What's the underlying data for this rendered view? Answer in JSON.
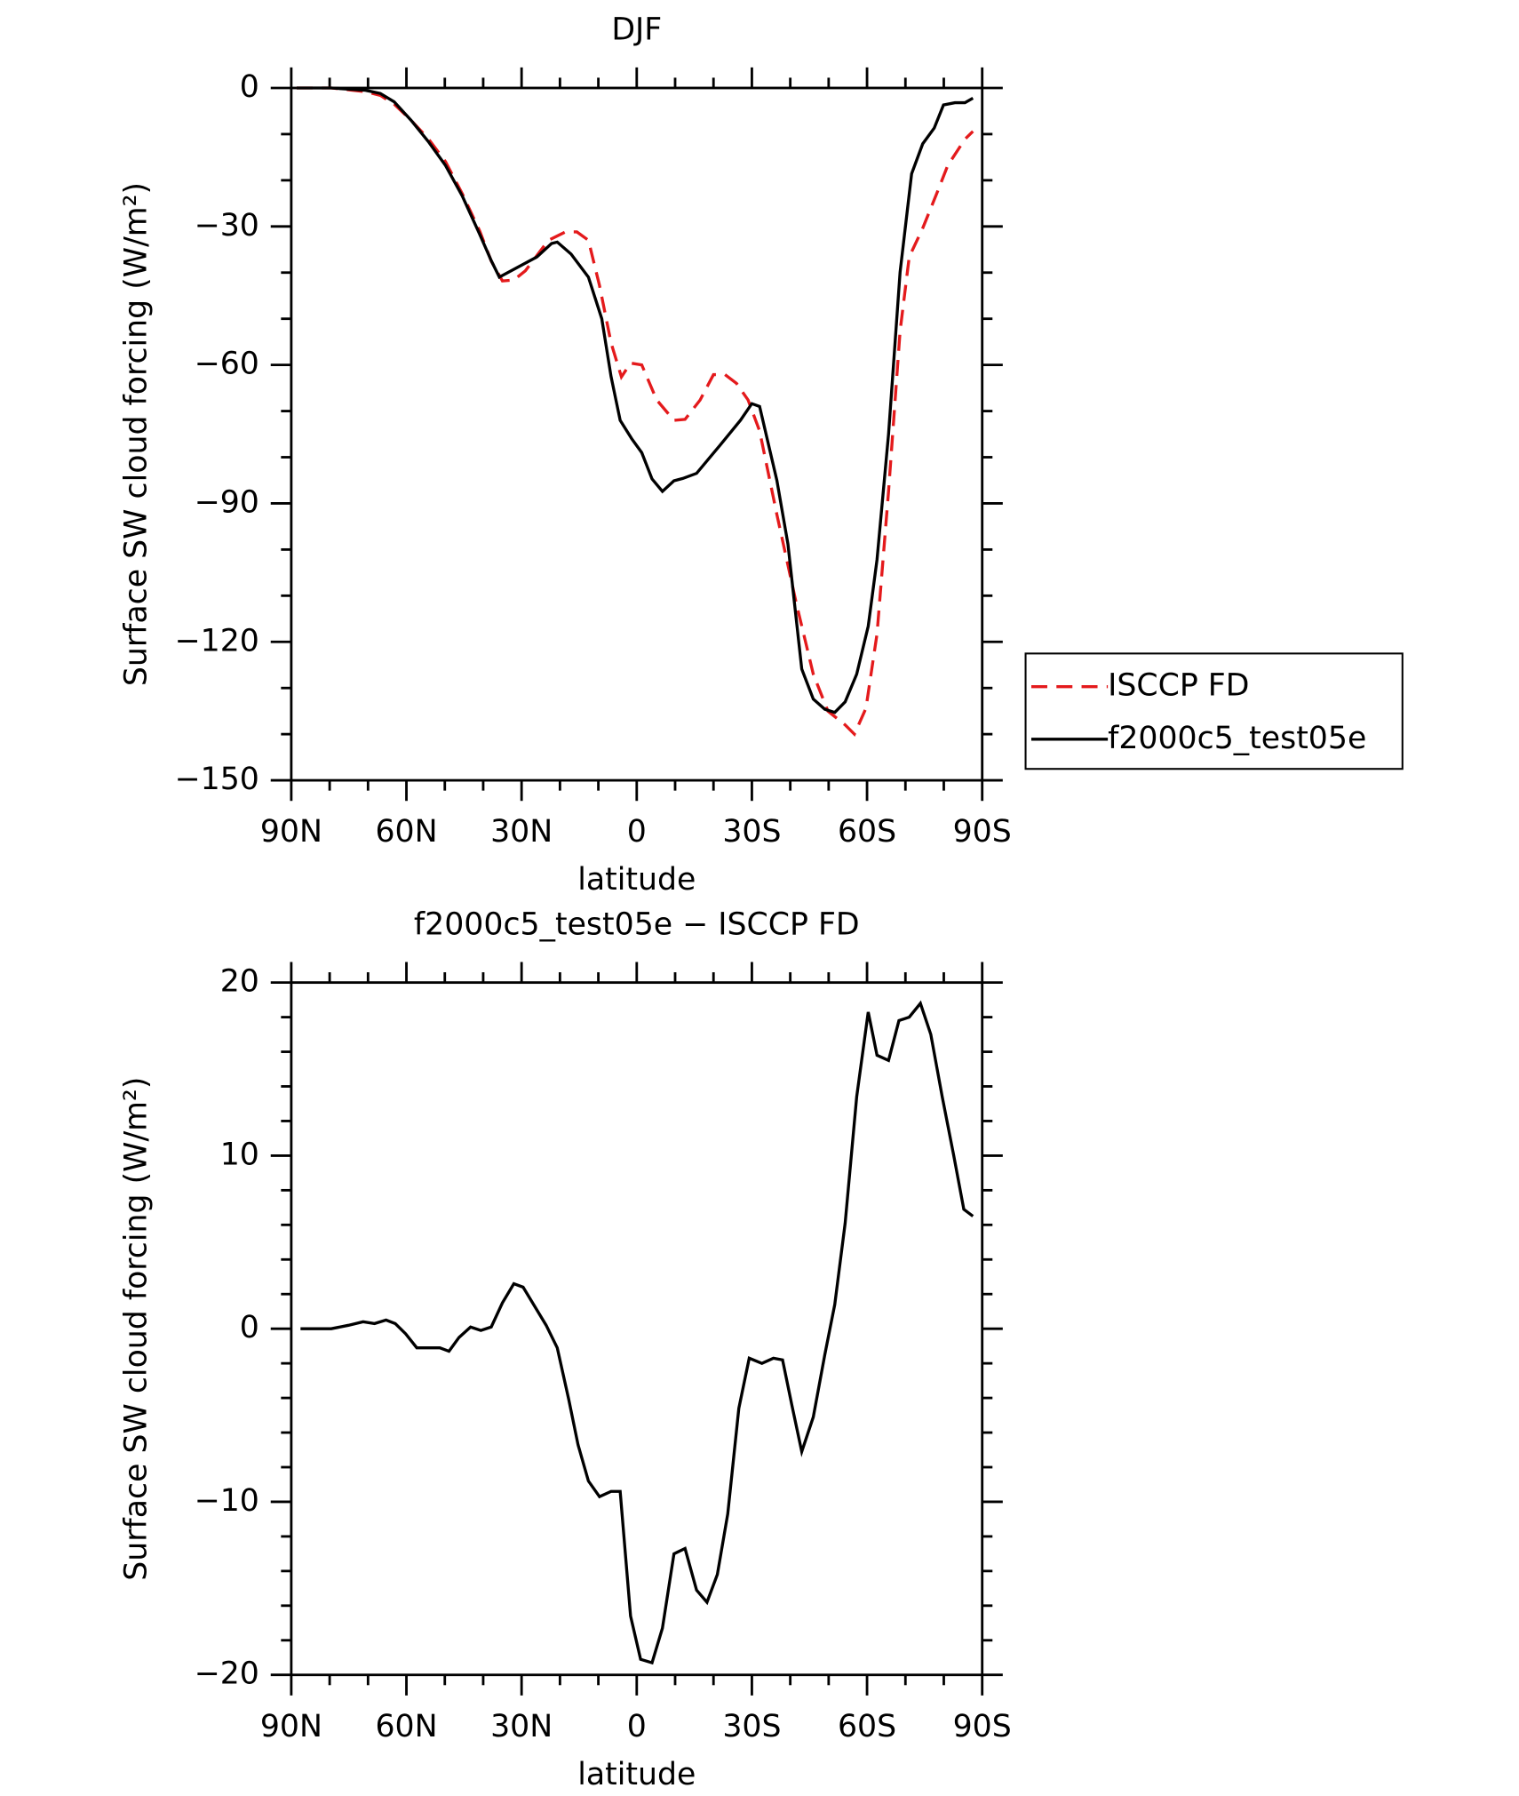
{
  "chart_data": [
    {
      "type": "line",
      "title": "DJF",
      "xlabel": "latitude",
      "ylabel": "Surface SW cloud forcing (W/m²)",
      "xlim": [
        90,
        -90
      ],
      "xticks": [
        {
          "value": 90,
          "label": "90N"
        },
        {
          "value": 60,
          "label": "60N"
        },
        {
          "value": 30,
          "label": "30N"
        },
        0,
        {
          "value": -30,
          "label": "30S"
        },
        {
          "value": -60,
          "label": "60S"
        },
        {
          "value": -90,
          "label": "90S"
        }
      ],
      "xminorticks": [
        80,
        70,
        50,
        40,
        20,
        10,
        -10,
        -20,
        -40,
        -50,
        -70,
        -80
      ],
      "ylim": [
        -150,
        0
      ],
      "yticks": [
        0,
        {
          "value": -30,
          "label": "−30"
        },
        {
          "value": -60,
          "label": "−60"
        },
        {
          "value": -90,
          "label": "−90"
        },
        {
          "value": -120,
          "label": "−120"
        },
        {
          "value": -150,
          "label": "−150"
        }
      ],
      "yminorticks": [
        -10,
        -20,
        -40,
        -50,
        -70,
        -80,
        -100,
        -110,
        -130,
        -140
      ],
      "legend": "outside right",
      "series": [
        {
          "name": "ISCCP FD",
          "color": "#e41a1c",
          "dash": true,
          "x": [
            88.6,
            79.6,
            70.7,
            66.8,
            63.2,
            58.8,
            54.3,
            49.8,
            45.4,
            40.9,
            37.9,
            35,
            32,
            29,
            23,
            18.6,
            15.6,
            12.6,
            9.7,
            6.7,
            4,
            1.6,
            -1.3,
            -5.2,
            -9.7,
            -12.6,
            -16.5,
            -20,
            -23,
            -26,
            -29,
            -32,
            -36.5,
            -41.5,
            -46,
            -49.8,
            -54.3,
            -56.7,
            -59.7,
            -62.6,
            -65.6,
            -68.6,
            -71,
            -74.5,
            -78.1,
            -81,
            -85.5,
            -87.6
          ],
          "values": [
            0,
            0,
            -0.8,
            -1.6,
            -3.5,
            -7,
            -11,
            -16,
            -23,
            -31,
            -37.5,
            -41.8,
            -41.6,
            -39.6,
            -33,
            -31.2,
            -31.2,
            -33,
            -42.8,
            -55.2,
            -62.6,
            -59.6,
            -60,
            -67.6,
            -72,
            -71.8,
            -67.6,
            -62.1,
            -62.1,
            -64,
            -67.6,
            -74.3,
            -92.4,
            -111.4,
            -127,
            -135,
            -138,
            -140,
            -134.4,
            -118.3,
            -87.4,
            -52.7,
            -36.6,
            -30.4,
            -23,
            -16.8,
            -11.1,
            -9.4
          ]
        },
        {
          "name": "f2000c5_test05e",
          "color": "#000000",
          "dash": false,
          "x": [
            88.6,
            79.6,
            70.7,
            66.8,
            63.2,
            58.8,
            54.3,
            49.8,
            45.4,
            40.9,
            37.9,
            35.8,
            26,
            22.2,
            20.7,
            17.1,
            12.6,
            9.1,
            6.7,
            4.3,
            1.3,
            -1.3,
            -4,
            -6.7,
            -9.7,
            -12,
            -15.6,
            -21.6,
            -27,
            -30,
            -32,
            -36.5,
            -39.4,
            -43,
            -46,
            -49,
            -51.6,
            -54.3,
            -57.3,
            -60.3,
            -62.6,
            -65.6,
            -68.6,
            -71.6,
            -74.5,
            -77.5,
            -79.9,
            -82.9,
            -85.5,
            -87.6
          ],
          "values": [
            0,
            0,
            -0.5,
            -1.2,
            -3,
            -7,
            -11.6,
            -16.8,
            -23.5,
            -31.7,
            -37.4,
            -41,
            -36.6,
            -33.7,
            -33.4,
            -36,
            -41,
            -50,
            -62.5,
            -72,
            -76,
            -79,
            -84.7,
            -87.4,
            -85.1,
            -84.6,
            -83.5,
            -77.5,
            -72,
            -68.4,
            -69,
            -85,
            -98.8,
            -125.9,
            -132.4,
            -134.6,
            -135.3,
            -133,
            -127,
            -116.6,
            -102.2,
            -75,
            -39.9,
            -18.6,
            -12.1,
            -8.7,
            -3.7,
            -3.2,
            -3.2,
            -2.2
          ]
        }
      ]
    },
    {
      "type": "line",
      "title": "f2000c5_test05e − ISCCP FD",
      "xlabel": "latitude",
      "ylabel": "Surface SW cloud forcing (W/m²)",
      "xlim": [
        90,
        -90
      ],
      "xticks": [
        {
          "value": 90,
          "label": "90N"
        },
        {
          "value": 60,
          "label": "60N"
        },
        {
          "value": 30,
          "label": "30N"
        },
        0,
        {
          "value": -30,
          "label": "30S"
        },
        {
          "value": -60,
          "label": "60S"
        },
        {
          "value": -90,
          "label": "90S"
        }
      ],
      "xminorticks": [
        80,
        70,
        50,
        40,
        20,
        10,
        -10,
        -20,
        -40,
        -50,
        -70,
        -80
      ],
      "ylim": [
        -20,
        20
      ],
      "yticks": [
        20,
        10,
        0,
        {
          "value": -10,
          "label": "−10"
        },
        {
          "value": -20,
          "label": "−20"
        }
      ],
      "yminorticks": [
        18,
        16,
        14,
        12,
        8,
        6,
        4,
        2,
        -2,
        -4,
        -6,
        -8,
        -12,
        -14,
        -16,
        -18
      ],
      "series": [
        {
          "color": "#000000",
          "dash": false,
          "x": [
            87.6,
            79.6,
            75.1,
            71.3,
            68.3,
            65.3,
            62.9,
            60.2,
            57.3,
            54.3,
            51.3,
            48.9,
            46.3,
            43.3,
            40.6,
            37.9,
            35,
            32,
            29.6,
            26.6,
            23.6,
            20.7,
            17.7,
            15.3,
            12.6,
            9.7,
            6.7,
            4.3,
            1.6,
            -1,
            -4,
            -6.7,
            -9.7,
            -12.6,
            -15.6,
            -18.3,
            -21,
            -23.7,
            -26.6,
            -29.3,
            -32.6,
            -35.6,
            -38,
            -40.4,
            -43,
            -46,
            -49,
            -51.6,
            -54.3,
            -57.3,
            -60.3,
            -62.6,
            -65.6,
            -68.3,
            -71,
            -73.9,
            -76.6,
            -79.6,
            -82.6,
            -85.2,
            -87.6
          ],
          "values": [
            0,
            0,
            0.2,
            0.4,
            0.3,
            0.5,
            0.3,
            -0.3,
            -1.1,
            -1.1,
            -1.1,
            -1.3,
            -0.5,
            0.1,
            -0.1,
            0.1,
            1.5,
            2.6,
            2.4,
            1.3,
            0.2,
            -1.1,
            -4.1,
            -6.7,
            -8.8,
            -9.7,
            -9.4,
            -9.4,
            -16.6,
            -19.1,
            -19.3,
            -17.3,
            -13,
            -12.7,
            -15.1,
            -15.8,
            -14.2,
            -10.7,
            -4.6,
            -1.7,
            -2,
            -1.7,
            -1.8,
            -4.4,
            -7.1,
            -5.1,
            -1.5,
            1.4,
            6.1,
            13.4,
            18.3,
            15.8,
            15.5,
            17.8,
            18,
            18.8,
            17,
            13.4,
            10,
            6.9,
            6.5
          ]
        }
      ]
    }
  ]
}
